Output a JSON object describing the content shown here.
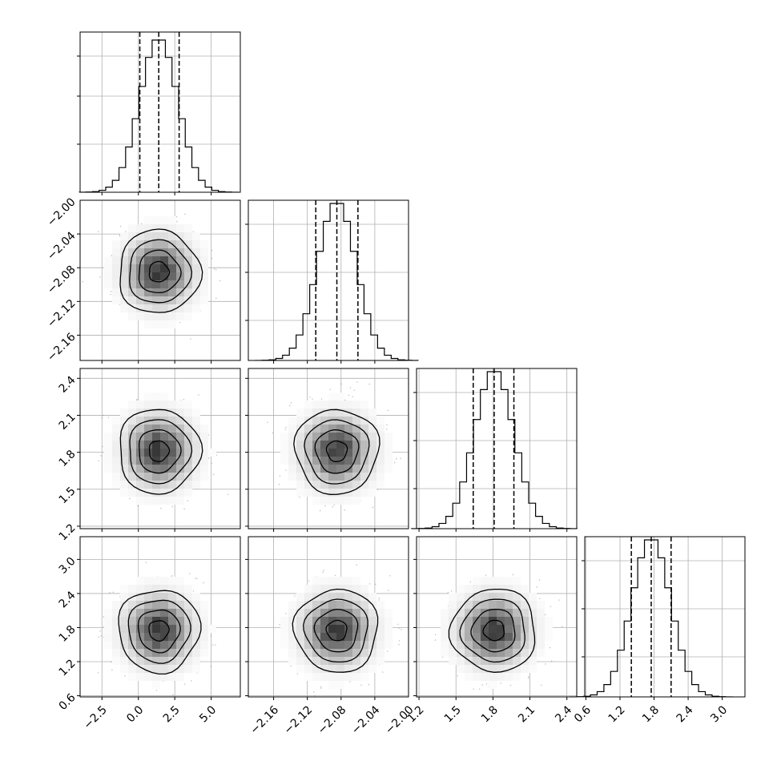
{
  "chart_data": {
    "type": "corner",
    "xlabel": "",
    "ylabel": "",
    "params": [
      {
        "ticks": [
          -2.5,
          0.0,
          2.5,
          5.0
        ],
        "tick_labels": [
          "−2.5",
          "0.0",
          "2.5",
          "5.0"
        ],
        "range": [
          -4.0,
          7.0
        ],
        "mean": 1.4,
        "sd": 1.3,
        "quantiles": [
          0.1,
          1.4,
          2.8
        ]
      },
      {
        "ticks": [
          -2.16,
          -2.12,
          -2.08,
          -2.04,
          -2.0
        ],
        "tick_labels": [
          "−2.16",
          "−2.12",
          "−2.08",
          "−2.04",
          "−2.00"
        ],
        "range": [
          -2.19,
          -2.0
        ],
        "mean": -2.085,
        "sd": 0.023,
        "quantiles": [
          -2.11,
          -2.085,
          -2.06
        ]
      },
      {
        "ticks": [
          1.2,
          1.5,
          1.8,
          2.1,
          2.4
        ],
        "tick_labels": [
          "1.2",
          "1.5",
          "1.8",
          "2.1",
          "2.4"
        ],
        "range": [
          1.18,
          2.48
        ],
        "mean": 1.81,
        "sd": 0.16,
        "quantiles": [
          1.64,
          1.81,
          1.97
        ]
      },
      {
        "ticks": [
          0.6,
          1.2,
          1.8,
          2.4,
          3.0
        ],
        "tick_labels": [
          "0.6",
          "1.2",
          "1.8",
          "2.4",
          "3.0"
        ],
        "range": [
          0.58,
          3.4
        ],
        "mean": 1.75,
        "sd": 0.34,
        "quantiles": [
          1.4,
          1.75,
          2.1
        ]
      }
    ],
    "histogram_ticks": [
      {
        "top": 0.95,
        "values": [
          0.85,
          0.6,
          0.3
        ]
      },
      {
        "values": [
          0.85,
          0.55,
          0.25
        ]
      },
      {
        "values": [
          0.85,
          0.55,
          0.25
        ]
      },
      {
        "values": [
          0.85,
          0.55,
          0.25
        ]
      }
    ],
    "grid": true,
    "contour_levels_sigma": [
      0.5,
      1.0,
      1.5,
      2.0
    ]
  }
}
